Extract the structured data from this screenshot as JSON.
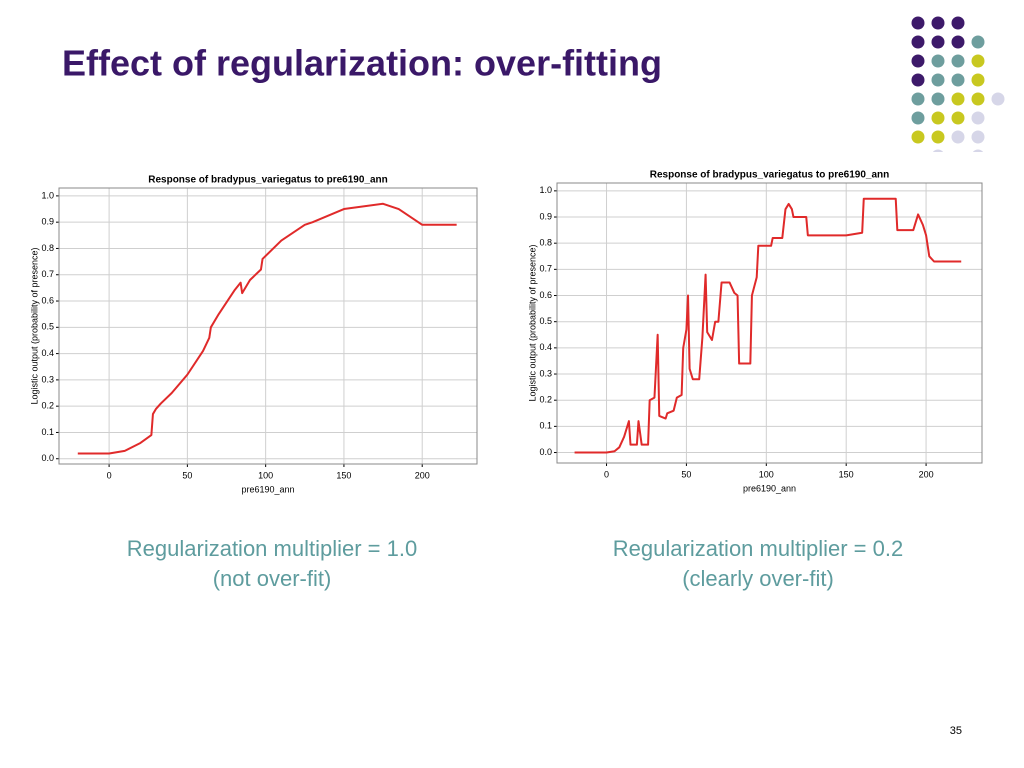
{
  "title": "Effect of regularization: over-fitting",
  "captions": [
    [
      "Regularization multiplier = 1.0",
      "(not over-fit)"
    ],
    [
      "Regularization multiplier = 0.2",
      "(clearly over-fit)"
    ]
  ],
  "page_number": "35",
  "chart_data": [
    {
      "type": "line",
      "title": "Response of bradypus_variegatus to pre6190_ann",
      "x_label": "pre6190_ann",
      "y_label": "Logistic output (probability of presence)",
      "x": [
        -20,
        0,
        10,
        20,
        27,
        28,
        30,
        33,
        40,
        50,
        60,
        64,
        65,
        70,
        80,
        84,
        85,
        90,
        97,
        98,
        110,
        125,
        130,
        150,
        175,
        185,
        195,
        200,
        222
      ],
      "series": [
        {
          "color": "#e02a2a",
          "values": [
            0.02,
            0.02,
            0.03,
            0.06,
            0.09,
            0.17,
            0.19,
            0.21,
            0.25,
            0.32,
            0.41,
            0.46,
            0.5,
            0.55,
            0.64,
            0.67,
            0.63,
            0.68,
            0.72,
            0.76,
            0.83,
            0.89,
            0.9,
            0.95,
            0.97,
            0.95,
            0.91,
            0.89,
            0.89
          ]
        }
      ],
      "xlim": [
        -32,
        235
      ],
      "ylim": [
        -0.02,
        1.03
      ],
      "xticks": [
        0,
        50,
        100,
        150,
        200
      ],
      "yticks": [
        {
          "value": 0,
          "label": "0.0"
        },
        0.1,
        0.2,
        0.3,
        0.4,
        0.5,
        0.6,
        0.7,
        0.8,
        0.9,
        {
          "value": 1,
          "label": "1.0"
        }
      ],
      "grid": true
    },
    {
      "type": "line",
      "title": "Response of bradypus_variegatus to pre6190_ann",
      "x_label": "pre6190_ann",
      "y_label": "Logistic output (probability of presence)",
      "x": [
        -20,
        0,
        5,
        8,
        11,
        14,
        15,
        19,
        20,
        22,
        26,
        27,
        30,
        32,
        33,
        37,
        38,
        42,
        44,
        47,
        48,
        50,
        51,
        52,
        54,
        58,
        60,
        62,
        63,
        66,
        68,
        70,
        72,
        77,
        80,
        82,
        83,
        90,
        91,
        94,
        95,
        103,
        104,
        110,
        112,
        114,
        116,
        117,
        125,
        126,
        150,
        160,
        161,
        174,
        181,
        182,
        192,
        195,
        198,
        200,
        202,
        205,
        222
      ],
      "series": [
        {
          "color": "#e02a2a",
          "values": [
            0.0,
            0.0,
            0.005,
            0.02,
            0.06,
            0.12,
            0.03,
            0.03,
            0.12,
            0.03,
            0.03,
            0.2,
            0.21,
            0.45,
            0.14,
            0.13,
            0.15,
            0.16,
            0.21,
            0.22,
            0.4,
            0.47,
            0.6,
            0.32,
            0.28,
            0.28,
            0.44,
            0.68,
            0.46,
            0.43,
            0.5,
            0.5,
            0.65,
            0.65,
            0.61,
            0.6,
            0.34,
            0.34,
            0.6,
            0.67,
            0.79,
            0.79,
            0.82,
            0.82,
            0.93,
            0.95,
            0.93,
            0.9,
            0.9,
            0.83,
            0.83,
            0.84,
            0.97,
            0.97,
            0.97,
            0.85,
            0.85,
            0.91,
            0.87,
            0.83,
            0.75,
            0.73,
            0.73
          ]
        }
      ],
      "xlim": [
        -31,
        235
      ],
      "ylim": [
        -0.04,
        1.03
      ],
      "xticks": [
        0,
        50,
        100,
        150,
        200
      ],
      "yticks": [
        {
          "value": 0,
          "label": "0.0"
        },
        0.1,
        0.2,
        0.3,
        0.4,
        0.5,
        0.6,
        0.7,
        0.8,
        0.9,
        {
          "value": 1,
          "label": "1.0"
        }
      ],
      "grid": true
    }
  ]
}
